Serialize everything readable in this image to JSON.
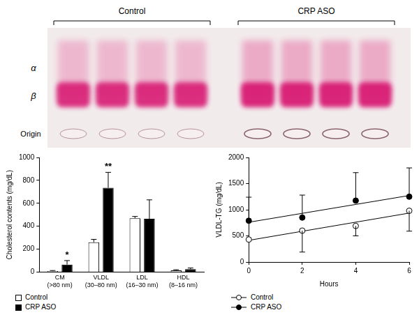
{
  "gel": {
    "groups": [
      {
        "label": "Control",
        "lanes": 4
      },
      {
        "label": "CRP ASO",
        "lanes": 4
      }
    ],
    "bands": [
      "α",
      "β"
    ],
    "origin_label": "Origin"
  },
  "chart_data": [
    {
      "type": "bar",
      "ylabel": "Cholesterol contents (mg/dL)",
      "categories": [
        "CM (>80 nm)",
        "VLDL (30–80 nm)",
        "LDL (16–30 nm)",
        "HDL (8–16 nm)"
      ],
      "series": [
        {
          "name": "Control",
          "color": "#ffffff",
          "values": [
            8,
            260,
            470,
            15
          ],
          "errors": [
            5,
            25,
            15,
            5
          ]
        },
        {
          "name": "CRP ASO",
          "color": "#000000",
          "values": [
            65,
            735,
            465,
            25
          ],
          "errors": [
            35,
            135,
            165,
            10
          ]
        }
      ],
      "annotations": [
        {
          "text": "*",
          "category": "CM (>80 nm)",
          "series": "CRP ASO"
        },
        {
          "text": "**",
          "category": "VLDL (30–80 nm)",
          "series": "CRP ASO"
        }
      ],
      "ylim": [
        0,
        1000
      ],
      "yticks": [
        0,
        200,
        400,
        600,
        800,
        1000
      ],
      "grid": false,
      "legend": "bottom left"
    },
    {
      "type": "scatter",
      "xlabel": "Hours",
      "ylabel": "VLDL-TG (mg/dL)",
      "x": [
        0,
        2,
        4,
        6
      ],
      "series": [
        {
          "name": "Control",
          "color": "#ffffff",
          "marker": "circle",
          "line_style": "regression",
          "values": [
            430,
            600,
            690,
            980
          ],
          "errors": [
            null,
            410,
            190,
            390
          ]
        },
        {
          "name": "CRP ASO",
          "color": "#000000",
          "marker": "circle",
          "line_style": "regression",
          "values": [
            790,
            850,
            1175,
            1250
          ],
          "errors": [
            450,
            430,
            535,
            550
          ]
        }
      ],
      "xlim": [
        0,
        6
      ],
      "xticks": [
        0,
        2,
        4,
        6
      ],
      "ylim": [
        0,
        2000
      ],
      "yticks": [
        0,
        500,
        1000,
        1500,
        2000
      ],
      "grid": false,
      "legend": "bottom left"
    }
  ]
}
